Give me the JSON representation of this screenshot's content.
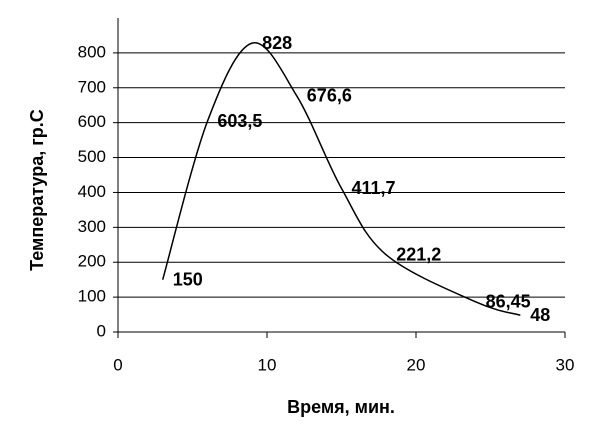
{
  "chart_data": {
    "type": "line",
    "x_label": "Время, мин.",
    "y_label": "Температура, гр.С",
    "x": [
      3,
      6,
      9,
      12,
      15,
      18,
      24,
      27
    ],
    "series": [
      {
        "color": "#000000",
        "values": [
          150,
          603.5,
          828,
          676.6,
          411.7,
          221.2,
          86.45,
          48
        ],
        "value_labels": [
          "150",
          "603,5",
          "828",
          "676,6",
          "411,7",
          "221,2",
          "86,45",
          "48"
        ]
      }
    ],
    "xlim": [
      0,
      30
    ],
    "xticks": [
      0,
      10,
      20,
      30
    ],
    "ylim": [
      0,
      900
    ],
    "yticks": [
      0,
      100,
      200,
      300,
      400,
      500,
      600,
      700,
      800
    ],
    "grid": true
  }
}
